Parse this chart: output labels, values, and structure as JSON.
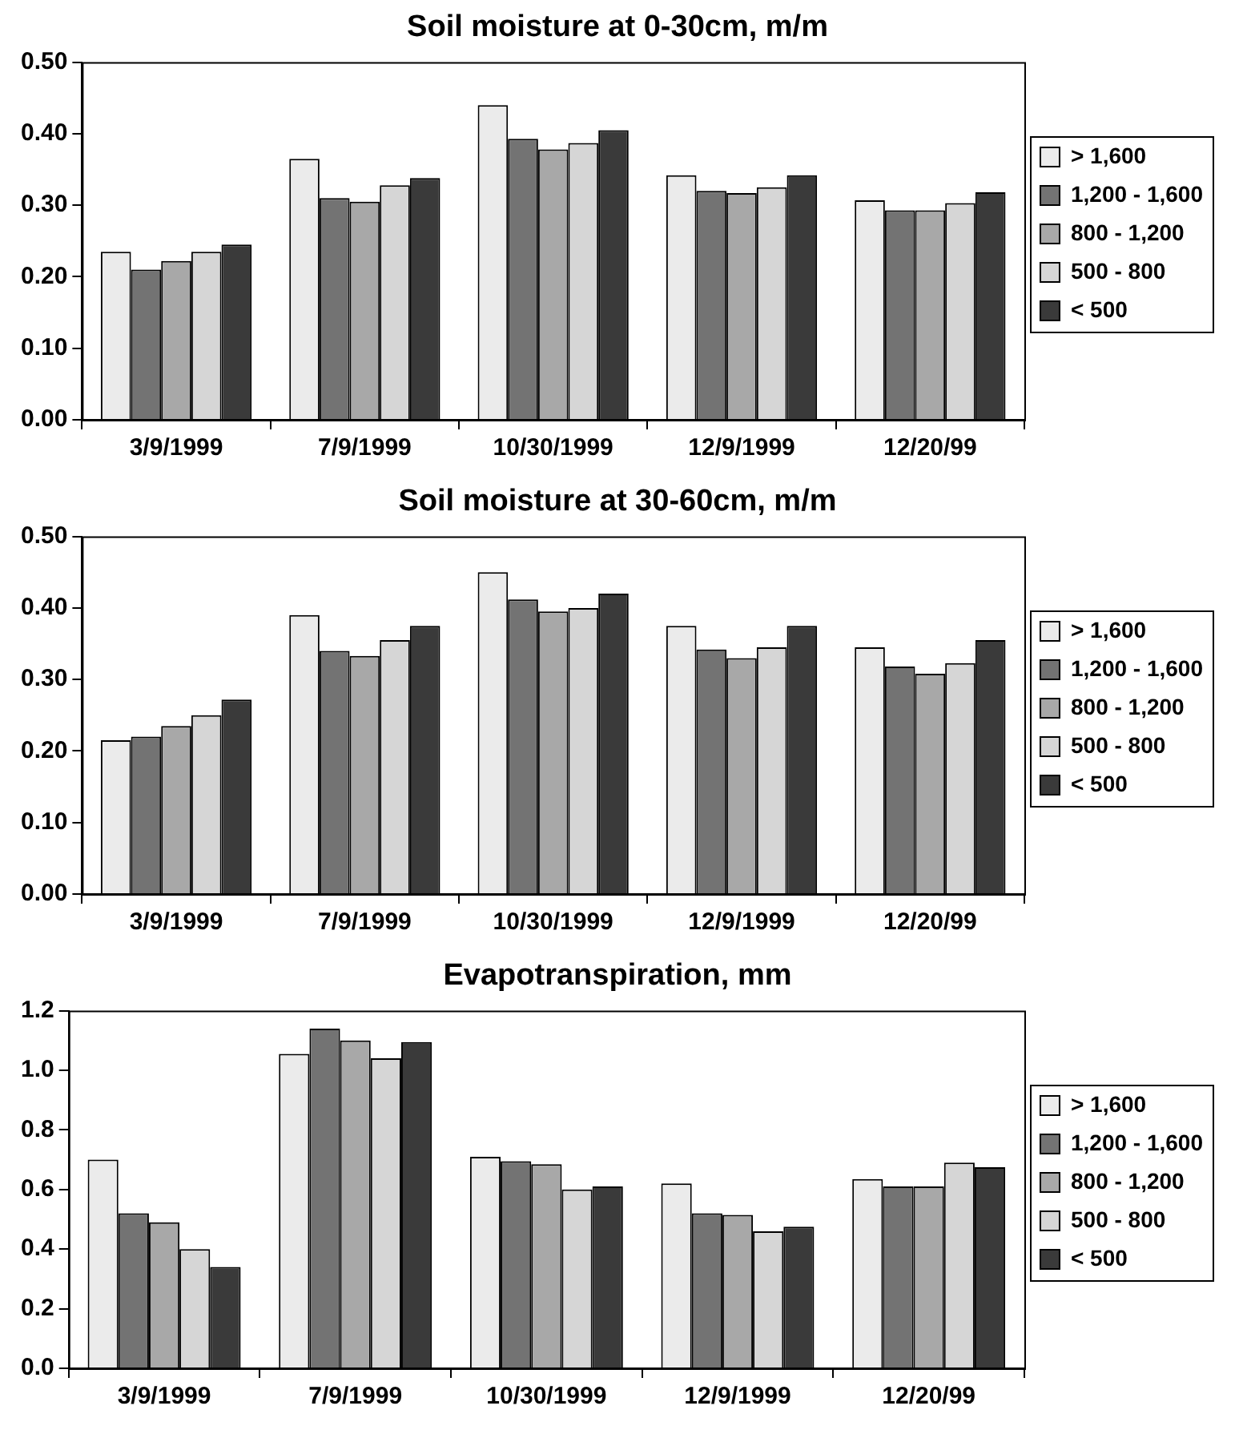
{
  "chart_data": [
    {
      "type": "bar",
      "title": "Soil moisture at 0-30cm, m/m",
      "categories": [
        "3/9/1999",
        "7/9/1999",
        "10/30/1999",
        "12/9/1999",
        "12/20/99"
      ],
      "series": [
        {
          "name": "> 1,600",
          "color": "#ebebeb",
          "values": [
            0.235,
            0.365,
            0.44,
            0.342,
            0.307
          ]
        },
        {
          "name": "1,200 - 1,600",
          "color": "#737373",
          "values": [
            0.21,
            0.31,
            0.393,
            0.32,
            0.293
          ]
        },
        {
          "name": "800 - 1,200",
          "color": "#a8a8a8",
          "values": [
            0.222,
            0.305,
            0.378,
            0.317,
            0.293
          ]
        },
        {
          "name": "500 - 800",
          "color": "#d6d6d6",
          "values": [
            0.235,
            0.328,
            0.387,
            0.325,
            0.303
          ]
        },
        {
          "name": "< 500",
          "color": "#3a3a3a",
          "values": [
            0.245,
            0.338,
            0.405,
            0.342,
            0.318
          ]
        }
      ],
      "ylim": [
        0,
        0.5
      ],
      "yticks": [
        {
          "value": 0,
          "label": "0.00"
        },
        {
          "value": 0.1,
          "label": "0.10"
        },
        {
          "value": 0.2,
          "label": "0.20"
        },
        {
          "value": 0.3,
          "label": "0.30"
        },
        {
          "value": 0.4,
          "label": "0.40"
        },
        {
          "value": 0.5,
          "label": "0.50"
        }
      ],
      "grid": false,
      "legend": "right"
    },
    {
      "type": "bar",
      "title": "Soil moisture at 30-60cm, m/m",
      "categories": [
        "3/9/1999",
        "7/9/1999",
        "10/30/1999",
        "12/9/1999",
        "12/20/99"
      ],
      "series": [
        {
          "name": "> 1,600",
          "color": "#ebebeb",
          "values": [
            0.215,
            0.39,
            0.45,
            0.375,
            0.345
          ]
        },
        {
          "name": "1,200 - 1,600",
          "color": "#737373",
          "values": [
            0.22,
            0.34,
            0.412,
            0.342,
            0.318
          ]
        },
        {
          "name": "800 - 1,200",
          "color": "#a8a8a8",
          "values": [
            0.235,
            0.333,
            0.395,
            0.33,
            0.308
          ]
        },
        {
          "name": "500 - 800",
          "color": "#d6d6d6",
          "values": [
            0.25,
            0.355,
            0.4,
            0.345,
            0.323
          ]
        },
        {
          "name": "< 500",
          "color": "#3a3a3a",
          "values": [
            0.272,
            0.375,
            0.42,
            0.375,
            0.355
          ]
        }
      ],
      "ylim": [
        0,
        0.5
      ],
      "yticks": [
        {
          "value": 0,
          "label": "0.00"
        },
        {
          "value": 0.1,
          "label": "0.10"
        },
        {
          "value": 0.2,
          "label": "0.20"
        },
        {
          "value": 0.3,
          "label": "0.30"
        },
        {
          "value": 0.4,
          "label": "0.40"
        },
        {
          "value": 0.5,
          "label": "0.50"
        }
      ],
      "grid": false,
      "legend": "right"
    },
    {
      "type": "bar",
      "title": "Evapotranspiration, mm",
      "categories": [
        "3/9/1999",
        "7/9/1999",
        "10/30/1999",
        "12/9/1999",
        "12/20/99"
      ],
      "series": [
        {
          "name": "> 1,600",
          "color": "#ebebeb",
          "values": [
            0.7,
            1.055,
            0.71,
            0.62,
            0.635
          ]
        },
        {
          "name": "1,200 - 1,600",
          "color": "#737373",
          "values": [
            0.52,
            1.14,
            0.695,
            0.52,
            0.61
          ]
        },
        {
          "name": "800 - 1,200",
          "color": "#a8a8a8",
          "values": [
            0.49,
            1.1,
            0.685,
            0.515,
            0.61
          ]
        },
        {
          "name": "500 - 800",
          "color": "#d6d6d6",
          "values": [
            0.4,
            1.04,
            0.6,
            0.46,
            0.69
          ]
        },
        {
          "name": "< 500",
          "color": "#3a3a3a",
          "values": [
            0.34,
            1.095,
            0.61,
            0.475,
            0.675
          ]
        }
      ],
      "ylim": [
        0,
        1.2
      ],
      "yticks": [
        {
          "value": 0,
          "label": "0.0"
        },
        0.2,
        0.4,
        0.6,
        0.8,
        {
          "value": 1,
          "label": "1.0"
        },
        1.2
      ],
      "grid": false,
      "legend": "right"
    }
  ]
}
